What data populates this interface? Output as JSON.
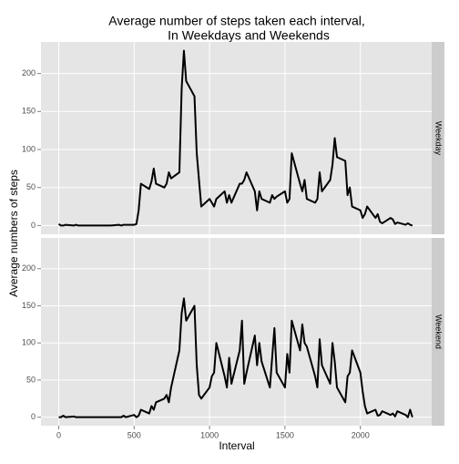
{
  "chart_data": {
    "type": "line",
    "title": [
      "Average number of steps taken each interval,",
      "In Weekdays and Weekends"
    ],
    "xlabel": "Interval",
    "ylabel": "Average numbers of steps",
    "facets": true,
    "grid": true,
    "xlim": [
      -117.75,
      2472.75
    ],
    "xticks": [
      0,
      500,
      1000,
      1500,
      2000
    ],
    "ylim": [
      -11.5,
      241.5
    ],
    "yticks": [
      0,
      50,
      100,
      150,
      200
    ],
    "x": [
      0,
      15,
      30,
      45,
      100,
      115,
      130,
      145,
      200,
      215,
      230,
      245,
      300,
      315,
      330,
      345,
      400,
      415,
      430,
      445,
      500,
      515,
      530,
      545,
      600,
      615,
      630,
      645,
      700,
      715,
      730,
      745,
      800,
      815,
      830,
      845,
      900,
      915,
      930,
      945,
      1000,
      1015,
      1030,
      1045,
      1100,
      1115,
      1130,
      1145,
      1200,
      1215,
      1230,
      1245,
      1300,
      1315,
      1330,
      1345,
      1400,
      1415,
      1430,
      1445,
      1500,
      1515,
      1530,
      1545,
      1600,
      1615,
      1630,
      1645,
      1700,
      1715,
      1730,
      1745,
      1800,
      1815,
      1830,
      1845,
      1900,
      1915,
      1930,
      1945,
      2000,
      2015,
      2030,
      2045,
      2100,
      2115,
      2130,
      2145,
      2200,
      2215,
      2230,
      2245,
      2300,
      2315,
      2330,
      2345
    ],
    "series": [
      {
        "name": "Weekday",
        "color": "#000000",
        "values": [
          2,
          0,
          0,
          1,
          0,
          1,
          0,
          0,
          0,
          0,
          0,
          0,
          0,
          0,
          0,
          0,
          1,
          0,
          1,
          1,
          1,
          2,
          20,
          55,
          48,
          58,
          75,
          55,
          50,
          55,
          70,
          62,
          70,
          180,
          230,
          190,
          170,
          95,
          60,
          25,
          35,
          30,
          25,
          35,
          45,
          30,
          40,
          30,
          55,
          55,
          60,
          70,
          45,
          20,
          45,
          35,
          30,
          40,
          35,
          38,
          45,
          30,
          35,
          95,
          55,
          45,
          60,
          35,
          30,
          35,
          70,
          45,
          60,
          80,
          115,
          90,
          85,
          40,
          50,
          25,
          20,
          10,
          15,
          25,
          10,
          15,
          5,
          3,
          10,
          8,
          2,
          4,
          1,
          3,
          1,
          0
        ]
      },
      {
        "name": "Weekend",
        "color": "#000000",
        "values": [
          0,
          0,
          2,
          0,
          1,
          0,
          0,
          0,
          0,
          0,
          0,
          0,
          0,
          0,
          0,
          0,
          0,
          0,
          2,
          0,
          3,
          0,
          2,
          10,
          5,
          15,
          10,
          20,
          25,
          30,
          20,
          40,
          90,
          140,
          160,
          130,
          150,
          70,
          30,
          25,
          40,
          55,
          60,
          100,
          55,
          40,
          80,
          45,
          90,
          130,
          45,
          60,
          110,
          70,
          100,
          75,
          40,
          80,
          120,
          60,
          40,
          85,
          60,
          130,
          90,
          125,
          100,
          95,
          55,
          40,
          105,
          70,
          45,
          100,
          75,
          40,
          20,
          55,
          60,
          90,
          60,
          35,
          15,
          5,
          10,
          2,
          3,
          8,
          3,
          5,
          1,
          8,
          3,
          0,
          10,
          0
        ]
      }
    ]
  }
}
